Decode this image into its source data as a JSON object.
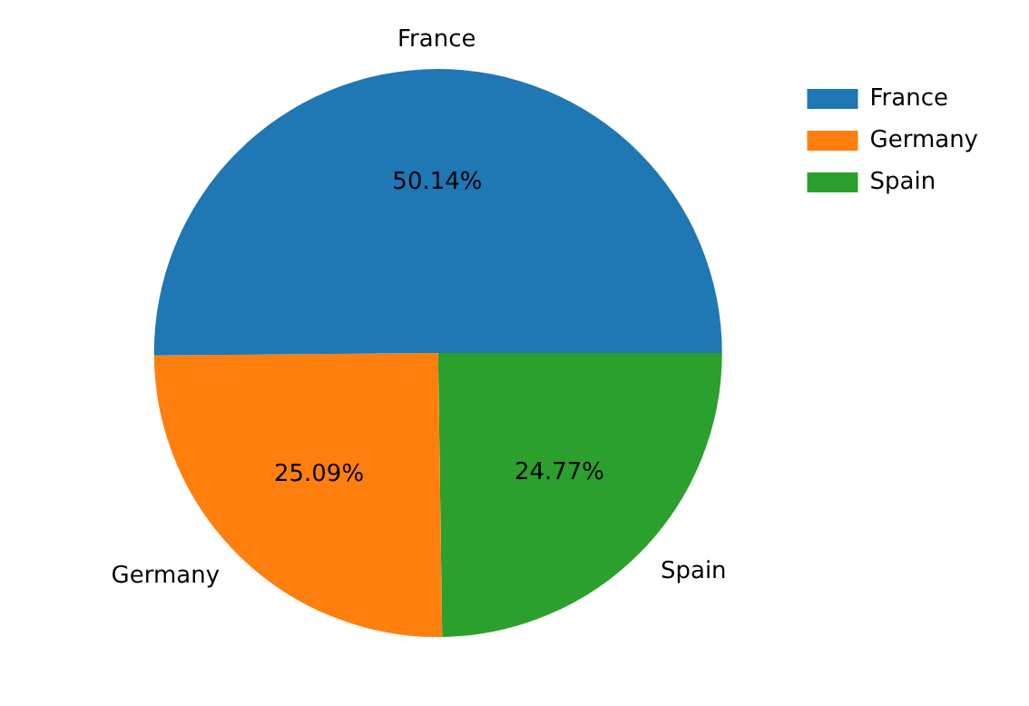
{
  "chart_data": {
    "type": "pie",
    "categories": [
      "France",
      "Germany",
      "Spain"
    ],
    "values": [
      50.14,
      25.09,
      24.77
    ],
    "colors": [
      "#1f77b4",
      "#ff7f0e",
      "#2ca02c"
    ],
    "value_labels": [
      "50.14%",
      "25.09%",
      "24.77%"
    ],
    "legend": "top right"
  }
}
